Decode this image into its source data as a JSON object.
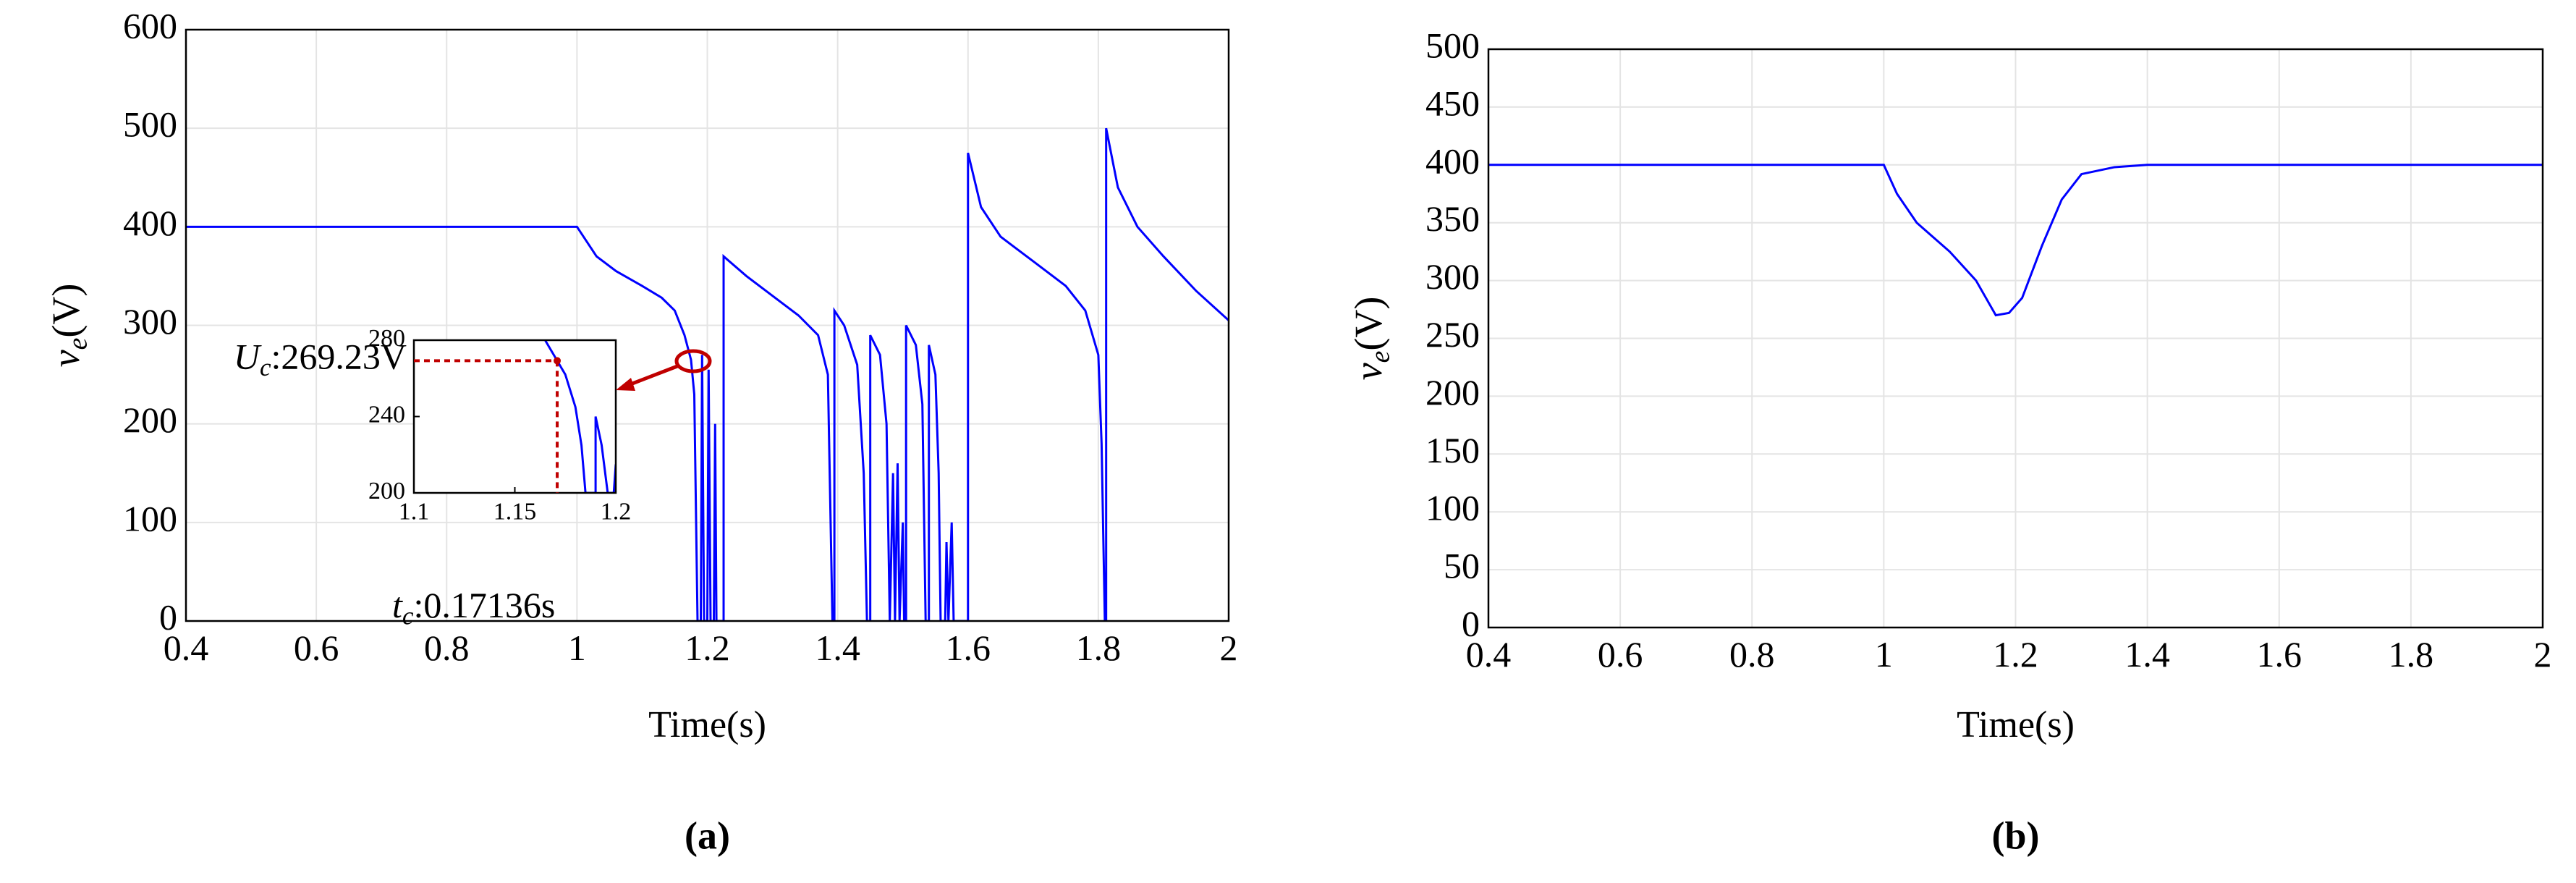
{
  "chart_data": [
    {
      "type": "line",
      "caption": "(a)",
      "xlabel": "Time(s)",
      "ylabel": {
        "symbol": "v",
        "subscript": "e",
        "unit": "(V)"
      },
      "xlim": [
        0.4,
        2
      ],
      "xticks": [
        0.4,
        0.6,
        0.8,
        1,
        1.2,
        1.4,
        1.6,
        1.8,
        2
      ],
      "ylim": [
        0,
        600
      ],
      "yticks": [
        0,
        100,
        200,
        300,
        400,
        500,
        600
      ],
      "grid": true,
      "x": [
        0.4,
        1.0,
        1.03,
        1.06,
        1.1,
        1.13,
        1.15,
        1.165,
        1.175,
        1.18,
        1.185,
        1.19,
        1.192,
        1.195,
        1.2,
        1.202,
        1.205,
        1.21,
        1.212,
        1.214,
        1.225,
        1.225,
        1.26,
        1.3,
        1.34,
        1.37,
        1.385,
        1.392,
        1.395,
        1.395,
        1.41,
        1.43,
        1.44,
        1.445,
        1.45,
        1.45,
        1.465,
        1.475,
        1.48,
        1.485,
        1.488,
        1.492,
        1.495,
        1.5,
        1.502,
        1.505,
        1.505,
        1.52,
        1.53,
        1.535,
        1.54,
        1.54,
        1.55,
        1.555,
        1.558,
        1.565,
        1.567,
        1.57,
        1.575,
        1.578,
        1.6,
        1.6,
        1.62,
        1.65,
        1.7,
        1.75,
        1.78,
        1.8,
        1.805,
        1.81,
        1.812,
        1.812,
        1.83,
        1.86,
        1.9,
        1.95,
        2.0
      ],
      "series": [
        {
          "color": "#0000ff",
          "values": [
            400,
            400,
            370,
            355,
            340,
            328,
            315,
            290,
            265,
            230,
            0,
            0,
            270,
            0,
            0,
            255,
            0,
            0,
            200,
            0,
            0,
            370,
            350,
            330,
            310,
            290,
            250,
            0,
            0,
            315,
            300,
            260,
            150,
            0,
            0,
            290,
            270,
            200,
            0,
            150,
            0,
            160,
            0,
            100,
            0,
            0,
            300,
            280,
            220,
            0,
            0,
            280,
            250,
            150,
            0,
            0,
            80,
            0,
            100,
            0,
            0,
            475,
            420,
            390,
            365,
            340,
            315,
            270,
            180,
            0,
            0,
            500,
            440,
            400,
            370,
            335,
            305
          ]
        }
      ]
    },
    {
      "type": "line",
      "inset": true,
      "xlim": [
        1.1,
        1.2
      ],
      "xticks": [
        1.1,
        1.15,
        1.2
      ],
      "ylim": [
        200,
        280
      ],
      "yticks": [
        200,
        240,
        280
      ],
      "grid": false,
      "x": [
        1.165,
        1.175,
        1.18,
        1.183,
        1.185,
        1.19,
        1.19,
        1.193,
        1.196,
        1.199,
        1.2
      ],
      "series": [
        {
          "color": "#0000ff",
          "values": [
            280,
            262,
            245,
            225,
            200,
            200,
            240,
            225,
            200,
            200,
            215
          ]
        }
      ],
      "annotations": [
        {
          "symbol": "U",
          "subscript": "c",
          "text": ":269.23V",
          "value": 269.23,
          "color": "#c00000"
        },
        {
          "symbol": "t",
          "subscript": "c",
          "text": ":0.17136s",
          "value": 0.17136,
          "color": "#c00000"
        }
      ]
    },
    {
      "type": "line",
      "caption": "(b)",
      "xlabel": "Time(s)",
      "ylabel": {
        "symbol": "v",
        "subscript": "e",
        "unit": "(V)"
      },
      "xlim": [
        0.4,
        2
      ],
      "xticks": [
        0.4,
        0.6,
        0.8,
        1,
        1.2,
        1.4,
        1.6,
        1.8,
        2
      ],
      "ylim": [
        0,
        500
      ],
      "yticks": [
        0,
        50,
        100,
        150,
        200,
        250,
        300,
        350,
        400,
        450,
        500
      ],
      "grid": true,
      "x": [
        0.4,
        1.0,
        1.02,
        1.05,
        1.1,
        1.14,
        1.16,
        1.17,
        1.19,
        1.21,
        1.24,
        1.27,
        1.3,
        1.35,
        1.4,
        2.0
      ],
      "series": [
        {
          "color": "#0000ff",
          "values": [
            400,
            400,
            375,
            350,
            325,
            300,
            280,
            270,
            272,
            285,
            330,
            370,
            392,
            398,
            400,
            400
          ]
        }
      ]
    }
  ]
}
